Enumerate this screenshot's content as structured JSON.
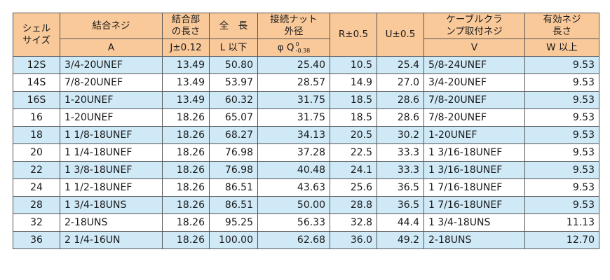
{
  "header": {
    "shell_size": "シェル\nサイズ",
    "coupling_thread": "結合ネジ",
    "coupling_length": "結合部\nの長さ",
    "total_length": "全　長",
    "nut_dia": "接続ナット\n外径",
    "r": "R±0.5",
    "u": "U±0.5",
    "cable_clamp": "ケーブルクラ\nンプ取付ネジ",
    "effective_len": "有効ネジ\n長さ",
    "sub_a": "A",
    "sub_j": "J±0.12",
    "sub_l": "L 以下",
    "sub_q": "φ Q",
    "sub_q_upper": "0",
    "sub_q_lower": "-0.38",
    "sub_v": "V",
    "sub_w": "W 以上"
  },
  "rows": [
    {
      "shell": "12S",
      "a": "3/4-20UNEF",
      "j": "13.49",
      "l": "50.80",
      "q": "25.40",
      "r": "10.5",
      "u": "25.4",
      "v": "5/8-24UNEF",
      "w": "9.53"
    },
    {
      "shell": "14S",
      "a": "7/8-20UNEF",
      "j": "13.49",
      "l": "53.97",
      "q": "28.57",
      "r": "14.9",
      "u": "27.0",
      "v": "3/4-20UNEF",
      "w": "9.53"
    },
    {
      "shell": "16S",
      "a": "1-20UNEF",
      "j": "13.49",
      "l": "60.32",
      "q": "31.75",
      "r": "18.5",
      "u": "28.6",
      "v": "7/8-20UNEF",
      "w": "9.53"
    },
    {
      "shell": "16",
      "a": "1-20UNEF",
      "j": "18.26",
      "l": "65.07",
      "q": "31.75",
      "r": "18.5",
      "u": "28.6",
      "v": "7/8-20UNEF",
      "w": "9.53"
    },
    {
      "shell": "18",
      "a": "1 1/8-18UNEF",
      "j": "18.26",
      "l": "68.27",
      "q": "34.13",
      "r": "20.5",
      "u": "30.2",
      "v": "1-20UNEF",
      "w": "9.53"
    },
    {
      "shell": "20",
      "a": "1 1/4-18UNEF",
      "j": "18.26",
      "l": "76.98",
      "q": "37.28",
      "r": "22.5",
      "u": "33.3",
      "v": "1 3/16-18UNEF",
      "w": "9.53"
    },
    {
      "shell": "22",
      "a": "1 3/8-18UNEF",
      "j": "18.26",
      "l": "76.98",
      "q": "40.48",
      "r": "24.1",
      "u": "33.3",
      "v": "1 3/16-18UNEF",
      "w": "9.53"
    },
    {
      "shell": "24",
      "a": "1 1/2-18UNEF",
      "j": "18.26",
      "l": "86.51",
      "q": "43.63",
      "r": "25.6",
      "u": "36.5",
      "v": "1 7/16-18UNEF",
      "w": "9.53"
    },
    {
      "shell": "28",
      "a": "1 3/4-18UNS",
      "j": "18.26",
      "l": "86.51",
      "q": "50.00",
      "r": "28.8",
      "u": "36.5",
      "v": "1 7/16-18UNEF",
      "w": "9.53"
    },
    {
      "shell": "32",
      "a": "2-18UNS",
      "j": "18.26",
      "l": "95.25",
      "q": "56.33",
      "r": "32.8",
      "u": "44.4",
      "v": "1 3/4-18UNS",
      "w": "11.13"
    },
    {
      "shell": "36",
      "a": "2 1/4-16UN",
      "j": "18.26",
      "l": "100.00",
      "q": "62.68",
      "r": "36.0",
      "u": "49.2",
      "v": "2-18UNS",
      "w": "12.70"
    }
  ]
}
